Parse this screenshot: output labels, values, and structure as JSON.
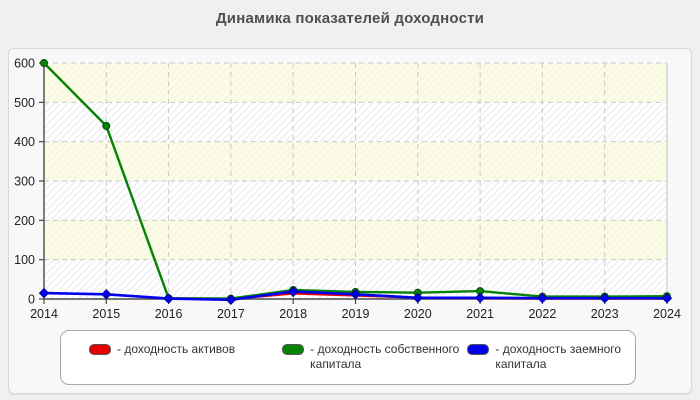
{
  "page": {
    "background_color": "#f0f0f0",
    "card_color": "#f8f8f8"
  },
  "chart_data": {
    "type": "line",
    "title": "Динамика показателей доходности",
    "xlabel": "",
    "ylabel": "",
    "x": [
      "2014",
      "2015",
      "2016",
      "2017",
      "2018",
      "2019",
      "2020",
      "2021",
      "2022",
      "2023",
      "2024"
    ],
    "ylim": [
      0,
      600
    ],
    "yticks": [
      0,
      100,
      200,
      300,
      400,
      500,
      600
    ],
    "grid": "dashed",
    "legend_position": "bottom",
    "legend_separator": "- ",
    "series": [
      {
        "name": "доходность активов",
        "color": "#e80000",
        "edge_color": "#8b0000",
        "marker": "diamond",
        "values": [
          null,
          null,
          null,
          0,
          14,
          9,
          3,
          2,
          1,
          1,
          1
        ]
      },
      {
        "name": "доходность собственного капитала",
        "color": "#068206",
        "edge_color": "#035203",
        "marker": "circle",
        "values": [
          600,
          440,
          2,
          1,
          23,
          18,
          16,
          20,
          6,
          6,
          7
        ]
      },
      {
        "name": "доходность заемного капитала",
        "color": "#0202ee",
        "edge_color": "#0000a0",
        "marker": "diamond",
        "values": [
          15,
          12,
          1,
          -2,
          19,
          12,
          3,
          3,
          2,
          2,
          2
        ]
      }
    ],
    "plot_style": {
      "band_color_ivory": "#f9f9dd",
      "band_color_gray": "#ffffff",
      "hatch_ivory_stripe": "#ffffff",
      "hatch_gray_stripe": "#e9e9f1",
      "gridline_color": "#c9c9c9",
      "axis_color": "#4a4a4a",
      "plot_border_color": "#d4d4d4"
    }
  }
}
